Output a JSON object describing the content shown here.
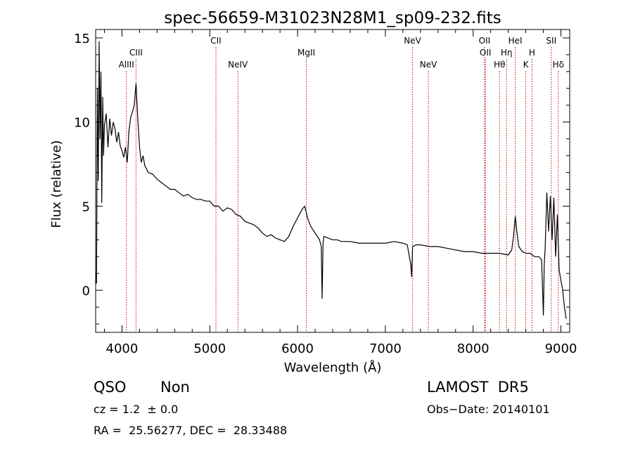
{
  "chart_data": {
    "type": "line",
    "title": "spec-56659-M31023N28M1_sp09-232.fits",
    "xlabel": "Wavelength (Å)",
    "ylabel": "Flux (relative)",
    "xlim": [
      3700,
      9100
    ],
    "ylim": [
      -2.5,
      15.5
    ],
    "xticks": [
      4000,
      5000,
      6000,
      7000,
      8000,
      9000
    ],
    "yticks": [
      0,
      5,
      10,
      15
    ],
    "grid": false,
    "line_color": "#000000",
    "marker_color": "#c00000",
    "lines": [
      {
        "label": "AlIII",
        "x": 4050,
        "row": 3
      },
      {
        "label": "CIII",
        "x": 4160,
        "row": 2
      },
      {
        "label": "CII",
        "x": 5070,
        "row": 1
      },
      {
        "label": "NeIV",
        "x": 5320,
        "row": 3
      },
      {
        "label": "MgII",
        "x": 6100,
        "row": 2
      },
      {
        "label": "NeV",
        "x": 7310,
        "row": 1
      },
      {
        "label": "NeV",
        "x": 7490,
        "row": 3
      },
      {
        "label": "OII",
        "x": 8130,
        "row": 1
      },
      {
        "label": "OII",
        "x": 8140,
        "row": 2
      },
      {
        "label": "Hθ",
        "x": 8300,
        "row": 3
      },
      {
        "label": "Hη",
        "x": 8380,
        "row": 2
      },
      {
        "label": "HeI",
        "x": 8480,
        "row": 1
      },
      {
        "label": "K",
        "x": 8600,
        "row": 3
      },
      {
        "label": "H",
        "x": 8670,
        "row": 2
      },
      {
        "label": "SII",
        "x": 8890,
        "row": 1
      },
      {
        "label": "Hδ",
        "x": 8970,
        "row": 3
      }
    ],
    "series": [
      {
        "x": [
          3700,
          3710,
          3720,
          3730,
          3740,
          3750,
          3760,
          3770,
          3780,
          3790,
          3800,
          3820,
          3840,
          3860,
          3880,
          3900,
          3920,
          3940,
          3960,
          3980,
          4000,
          4020,
          4040,
          4060,
          4080,
          4100,
          4120,
          4140,
          4160,
          4180,
          4200,
          4220,
          4240,
          4260,
          4280,
          4300,
          4350,
          4400,
          4450,
          4500,
          4550,
          4600,
          4650,
          4700,
          4750,
          4800,
          4850,
          4900,
          4950,
          5000,
          5050,
          5100,
          5150,
          5200,
          5250,
          5300,
          5350,
          5400,
          5450,
          5500,
          5550,
          5600,
          5650,
          5700,
          5750,
          5800,
          5850,
          5900,
          5950,
          6000,
          6050,
          6080,
          6100,
          6120,
          6150,
          6200,
          6250,
          6270,
          6280,
          6290,
          6300,
          6350,
          6400,
          6450,
          6500,
          6600,
          6700,
          6800,
          6900,
          7000,
          7100,
          7200,
          7250,
          7290,
          7300,
          7310,
          7350,
          7400,
          7500,
          7600,
          7700,
          7800,
          7900,
          8000,
          8100,
          8200,
          8300,
          8400,
          8440,
          8460,
          8480,
          8500,
          8520,
          8560,
          8600,
          8650,
          8700,
          8750,
          8780,
          8800,
          8810,
          8820,
          8840,
          8860,
          8880,
          8900,
          8920,
          8940,
          8960,
          8980,
          9000,
          9020,
          9040,
          9060
        ],
        "y": [
          1.0,
          0.4,
          12.0,
          6.5,
          14.8,
          9.0,
          13.0,
          5.2,
          11.5,
          8.0,
          9.8,
          10.5,
          8.5,
          10.2,
          9.2,
          10.0,
          9.6,
          8.8,
          9.4,
          8.6,
          8.3,
          7.9,
          8.5,
          7.6,
          9.5,
          10.3,
          10.6,
          11.0,
          12.3,
          10.2,
          8.5,
          7.6,
          8.0,
          7.4,
          7.2,
          7.0,
          6.9,
          6.6,
          6.4,
          6.2,
          6.0,
          6.0,
          5.8,
          5.6,
          5.7,
          5.5,
          5.4,
          5.4,
          5.3,
          5.3,
          5.0,
          5.0,
          4.7,
          4.9,
          4.8,
          4.5,
          4.4,
          4.1,
          4.0,
          3.9,
          3.7,
          3.4,
          3.2,
          3.3,
          3.1,
          3.0,
          2.9,
          3.2,
          3.8,
          4.3,
          4.8,
          5.0,
          4.6,
          4.2,
          3.8,
          3.4,
          3.0,
          2.6,
          -0.5,
          2.8,
          3.2,
          3.1,
          3.0,
          3.0,
          2.9,
          2.9,
          2.8,
          2.8,
          2.8,
          2.8,
          2.9,
          2.8,
          2.7,
          1.5,
          0.8,
          2.6,
          2.7,
          2.7,
          2.6,
          2.6,
          2.5,
          2.4,
          2.3,
          2.3,
          2.2,
          2.2,
          2.2,
          2.1,
          2.4,
          3.2,
          4.4,
          3.4,
          2.6,
          2.3,
          2.2,
          2.2,
          2.0,
          2.0,
          1.8,
          -1.5,
          1.5,
          2.5,
          5.8,
          3.5,
          5.6,
          3.0,
          5.5,
          2.0,
          4.5,
          1.2,
          0.6,
          0.0,
          -1.0,
          -1.7
        ]
      }
    ]
  },
  "info": {
    "class": "QSO",
    "subclass": "Non",
    "survey": "LAMOST  DR5",
    "cz": "cz = 1.2  ± 0.0",
    "obsdate": "Obs−Date: 20140101",
    "radec": "RA =  25.56277, DEC =  28.33488"
  }
}
